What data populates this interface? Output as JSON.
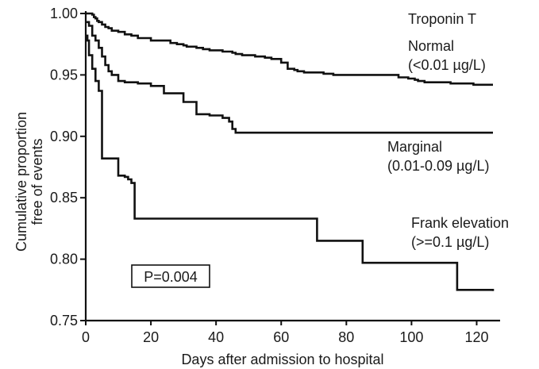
{
  "chart_data": {
    "type": "line",
    "subtype": "kaplan-meier step curves",
    "title": "",
    "xlabel": "Days after admission to hospital",
    "ylabel_lines": [
      "Cumulative proportion",
      "free of events"
    ],
    "xlim": [
      0,
      125
    ],
    "ylim": [
      0.75,
      1.0
    ],
    "xticks": [
      0,
      20,
      40,
      60,
      80,
      100,
      120
    ],
    "yticks": [
      0.75,
      0.8,
      0.85,
      0.9,
      0.95,
      1.0
    ],
    "ytick_labels": [
      "0.75",
      "0.80",
      "0.85",
      "0.90",
      "0.95",
      "1.00"
    ],
    "grid": false,
    "legend_title": "Troponin T",
    "annotation": "P=0.004",
    "series": [
      {
        "name": "Normal",
        "label_lines": [
          "Normal",
          "(<0.01 µg/L)"
        ],
        "x": [
          0,
          1,
          2,
          2.5,
          3,
          3.5,
          4,
          5,
          6,
          7,
          8,
          10,
          12,
          14,
          16,
          20,
          26,
          28,
          30,
          31,
          34,
          36,
          38,
          42,
          45,
          46,
          48,
          52,
          55,
          57,
          60,
          62,
          64,
          65,
          67,
          73,
          76,
          80,
          95,
          96,
          99,
          101,
          102,
          104,
          112,
          117,
          119,
          120,
          125
        ],
        "y": [
          1.0,
          1.0,
          0.999,
          0.997,
          0.996,
          0.994,
          0.993,
          0.991,
          0.989,
          0.988,
          0.986,
          0.985,
          0.983,
          0.982,
          0.98,
          0.978,
          0.976,
          0.975,
          0.974,
          0.973,
          0.972,
          0.971,
          0.97,
          0.969,
          0.968,
          0.967,
          0.966,
          0.965,
          0.964,
          0.963,
          0.96,
          0.955,
          0.954,
          0.953,
          0.952,
          0.951,
          0.95,
          0.95,
          0.95,
          0.948,
          0.947,
          0.946,
          0.945,
          0.944,
          0.943,
          0.943,
          0.942,
          0.942,
          0.942
        ]
      },
      {
        "name": "Marginal",
        "label_lines": [
          "Marginal",
          "(0.01-0.09 µg/L)"
        ],
        "x": [
          0,
          1,
          2,
          3,
          4,
          5,
          6,
          7,
          8,
          10,
          12,
          16,
          20,
          24,
          30,
          34,
          38,
          42,
          44,
          45,
          46,
          50,
          60,
          80,
          100,
          125
        ],
        "y": [
          0.993,
          0.99,
          0.982,
          0.978,
          0.972,
          0.965,
          0.958,
          0.953,
          0.95,
          0.945,
          0.944,
          0.943,
          0.941,
          0.935,
          0.928,
          0.918,
          0.917,
          0.915,
          0.912,
          0.906,
          0.903,
          0.903,
          0.903,
          0.903,
          0.903,
          0.903
        ]
      },
      {
        "name": "Frank elevation",
        "label_lines": [
          "Frank elevation",
          "(>=0.1 µg/L)"
        ],
        "x": [
          0,
          0.5,
          1,
          2,
          3,
          4,
          5,
          6,
          10,
          12,
          13,
          14,
          15,
          20,
          40,
          60,
          70,
          71,
          80,
          84,
          85,
          100,
          113,
          114,
          125
        ],
        "y": [
          0.982,
          0.978,
          0.966,
          0.955,
          0.945,
          0.937,
          0.882,
          0.882,
          0.868,
          0.867,
          0.865,
          0.862,
          0.833,
          0.833,
          0.833,
          0.833,
          0.833,
          0.815,
          0.815,
          0.815,
          0.797,
          0.797,
          0.797,
          0.775,
          0.774
        ]
      }
    ]
  }
}
